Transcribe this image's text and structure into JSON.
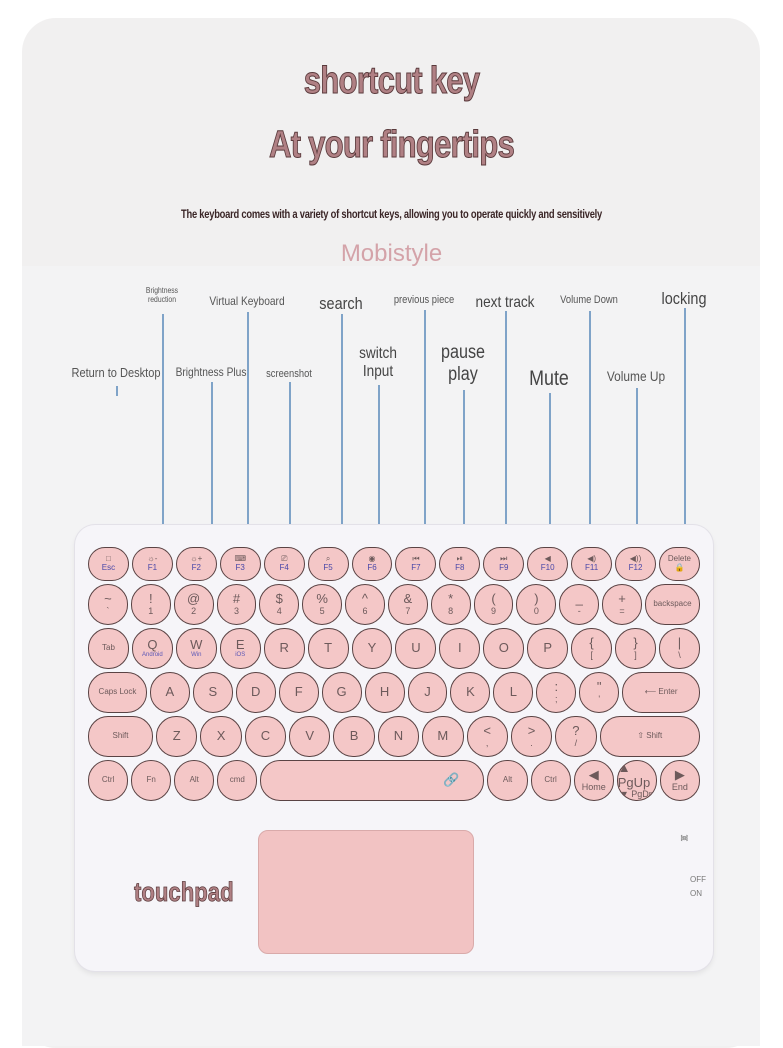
{
  "header": {
    "title": "shortcut key",
    "subtitle": "At your fingertips",
    "description": "The keyboard comes with a variety of shortcut keys, allowing you to operate quickly and sensitively",
    "brand": "Mobistyle"
  },
  "callouts": [
    {
      "label": "Return to Desktop"
    },
    {
      "label": "Brightness reduction"
    },
    {
      "label": "Brightness Plus"
    },
    {
      "label": "Virtual Keyboard"
    },
    {
      "label": "screenshot"
    },
    {
      "label": "search"
    },
    {
      "label": "switch Input"
    },
    {
      "label": "previous piece"
    },
    {
      "label": "pause play"
    },
    {
      "label": "next track"
    },
    {
      "label": "Mute"
    },
    {
      "label": "Volume Down"
    },
    {
      "label": "Volume Up"
    },
    {
      "label": "locking"
    }
  ],
  "keyboard": {
    "rows": [
      [
        {
          "p": "□",
          "s": "Esc"
        },
        {
          "p": "☼-",
          "s": "F1"
        },
        {
          "p": "☼+",
          "s": "F2"
        },
        {
          "p": "⌨",
          "s": "F3"
        },
        {
          "p": "⎚",
          "s": "F4"
        },
        {
          "p": "⌕",
          "s": "F5"
        },
        {
          "p": "◉",
          "s": "F6"
        },
        {
          "p": "⏮",
          "s": "F7"
        },
        {
          "p": "⏯",
          "s": "F8"
        },
        {
          "p": "⏭",
          "s": "F9"
        },
        {
          "p": "◀",
          "s": "F10"
        },
        {
          "p": "◀)",
          "s": "F11"
        },
        {
          "p": "◀))",
          "s": "F12"
        },
        {
          "p": "Delete",
          "s": "🔒"
        }
      ],
      [
        {
          "p": "~",
          "s": "`"
        },
        {
          "p": "!",
          "s": "1"
        },
        {
          "p": "@",
          "s": "2"
        },
        {
          "p": "#",
          "s": "3"
        },
        {
          "p": "$",
          "s": "4"
        },
        {
          "p": "%",
          "s": "5"
        },
        {
          "p": "^",
          "s": "6"
        },
        {
          "p": "&",
          "s": "7"
        },
        {
          "p": "*",
          "s": "8"
        },
        {
          "p": "(",
          "s": "9"
        },
        {
          "p": ")",
          "s": "0"
        },
        {
          "p": "_",
          "s": "-"
        },
        {
          "p": "+",
          "s": "="
        },
        {
          "p": "backspace"
        }
      ],
      [
        {
          "p": "Tab"
        },
        {
          "p": "Q",
          "sub": "Android"
        },
        {
          "p": "W",
          "sub": "Win"
        },
        {
          "p": "E",
          "sub": "iOS"
        },
        {
          "p": "R"
        },
        {
          "p": "T"
        },
        {
          "p": "Y"
        },
        {
          "p": "U"
        },
        {
          "p": "I"
        },
        {
          "p": "O"
        },
        {
          "p": "P"
        },
        {
          "p": "{",
          "s": "["
        },
        {
          "p": "}",
          "s": "]"
        },
        {
          "p": "|",
          "s": "\\"
        }
      ],
      [
        {
          "p": "Caps Lock"
        },
        {
          "p": "A"
        },
        {
          "p": "S"
        },
        {
          "p": "D"
        },
        {
          "p": "F"
        },
        {
          "p": "G"
        },
        {
          "p": "H"
        },
        {
          "p": "J"
        },
        {
          "p": "K"
        },
        {
          "p": "L"
        },
        {
          "p": ":",
          "s": ";"
        },
        {
          "p": "\"",
          "s": "'"
        },
        {
          "p": "⟵ Enter"
        }
      ],
      [
        {
          "p": "Shift"
        },
        {
          "p": "Z"
        },
        {
          "p": "X"
        },
        {
          "p": "C"
        },
        {
          "p": "V"
        },
        {
          "p": "B"
        },
        {
          "p": "N"
        },
        {
          "p": "M"
        },
        {
          "p": "<",
          "s": ","
        },
        {
          "p": ">",
          "s": "."
        },
        {
          "p": "?",
          "s": "/"
        },
        {
          "p": "⇧ Shift"
        }
      ],
      [
        {
          "p": "Ctrl"
        },
        {
          "p": "Fn"
        },
        {
          "p": "Alt"
        },
        {
          "p": "cmd"
        },
        {
          "p": "🔗"
        },
        {
          "p": "Alt"
        },
        {
          "p": "Ctrl"
        },
        {
          "p": "◀",
          "s": "Home"
        },
        {
          "p": "▲ PgUp",
          "s": "▼ PgDn"
        },
        {
          "p": "▶",
          "s": "End"
        }
      ]
    ]
  },
  "touchpad": {
    "label": "touchpad"
  },
  "indicators": {
    "off": "OFF",
    "on": "ON"
  },
  "colors": {
    "key": "#f4c7c7",
    "title": "#b08084",
    "brand": "#d4a3a9",
    "leader": "#7fa3c8"
  }
}
